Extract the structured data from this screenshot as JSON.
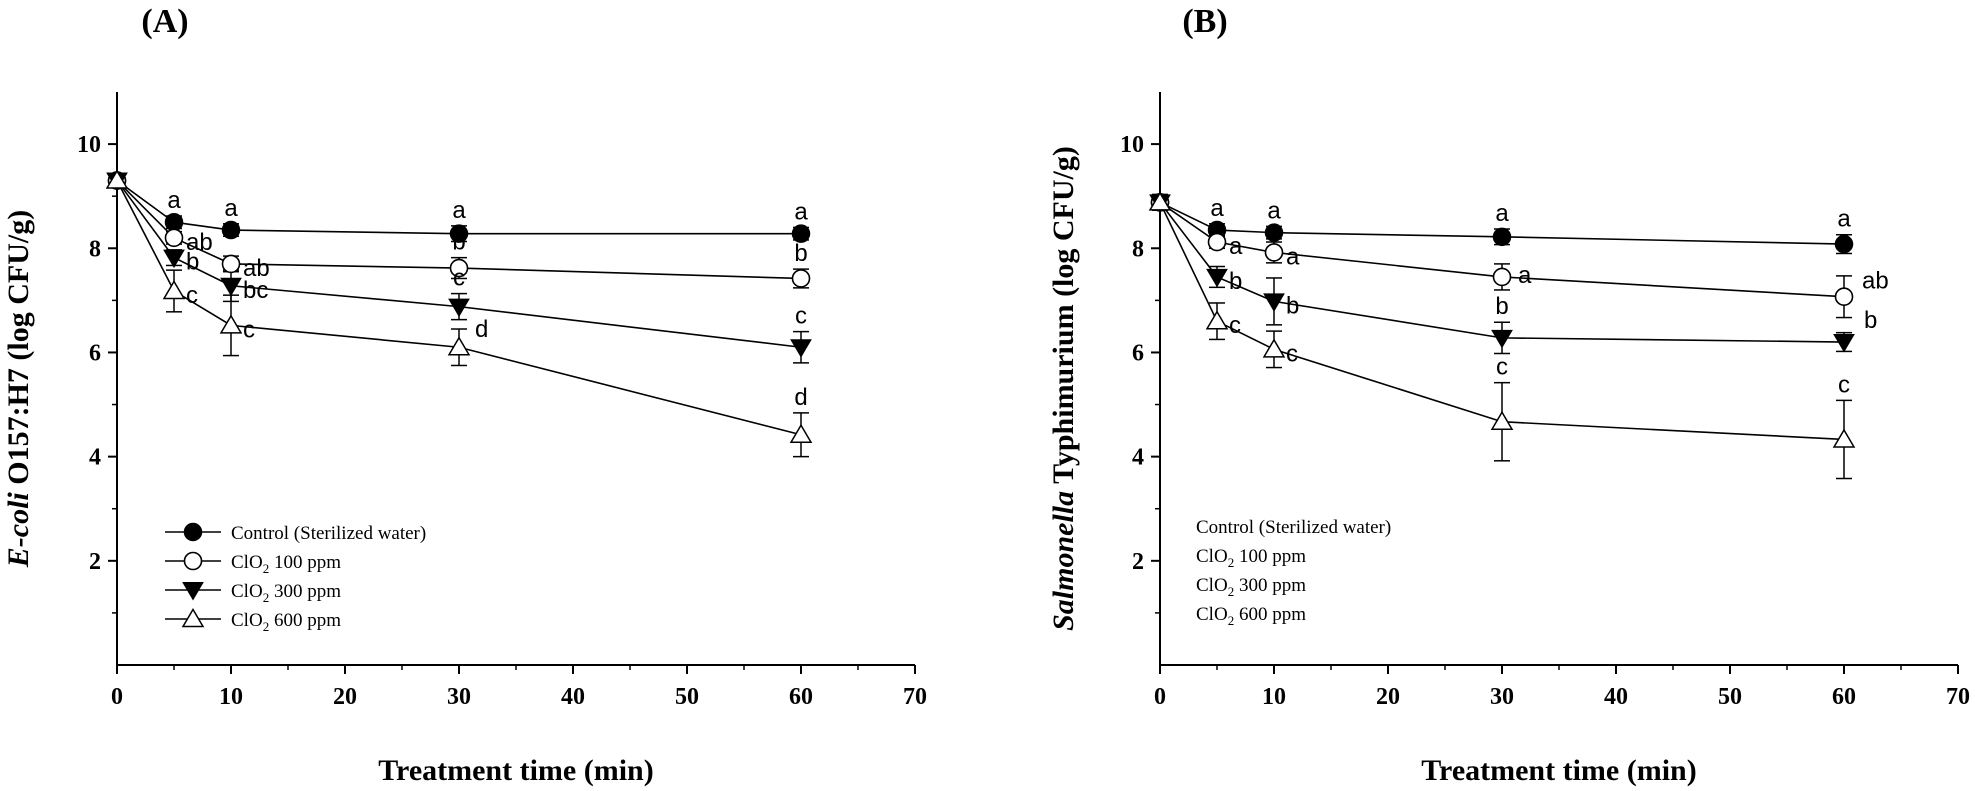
{
  "chart_data": [
    {
      "type": "line",
      "panel_label": "(A)",
      "ylabel_italic": "E-coli",
      "ylabel_rest": " O157:H7 (log CFU/g)",
      "xlabel": "Treatment time (min)",
      "xlim": [
        0,
        70
      ],
      "ylim": [
        0,
        11
      ],
      "xticks": [
        "0",
        "10",
        "20",
        "30",
        "40",
        "50",
        "60",
        "70"
      ],
      "yticks": [
        "2",
        "4",
        "6",
        "8",
        "10"
      ],
      "legend_position": "lower-left",
      "legend_markers": true,
      "x": [
        0,
        5,
        10,
        30,
        60
      ],
      "series": [
        {
          "name": "Control (Sterilized water)",
          "marker": "filled-circle",
          "values": [
            9.3,
            8.5,
            8.35,
            8.28,
            8.28
          ],
          "errors": [
            0.1,
            0.12,
            0.12,
            0.15,
            0.12
          ],
          "letters": [
            "",
            "a",
            "a",
            "a",
            "a"
          ]
        },
        {
          "name": "ClO2 100 ppm",
          "name_main": "ClO",
          "name_sub": "2",
          "name_rest": " 100 ppm",
          "marker": "open-circle",
          "values": [
            9.3,
            8.2,
            7.7,
            7.62,
            7.42
          ],
          "errors": [
            0.1,
            0.12,
            0.15,
            0.2,
            0.18
          ],
          "letters": [
            "",
            "ab",
            "ab",
            "b",
            "b"
          ]
        },
        {
          "name": "ClO2 300 ppm",
          "name_main": "ClO",
          "name_sub": "2",
          "name_rest": " 300 ppm",
          "marker": "filled-triangle-down",
          "values": [
            9.3,
            7.82,
            7.28,
            6.88,
            6.1
          ],
          "errors": [
            0.1,
            0.15,
            0.3,
            0.25,
            0.3
          ],
          "letters": [
            "",
            "b",
            "bc",
            "c",
            "c"
          ]
        },
        {
          "name": "ClO2 600 ppm",
          "name_main": "ClO",
          "name_sub": "2",
          "name_rest": " 600 ppm",
          "marker": "open-triangle-up",
          "values": [
            9.3,
            7.18,
            6.52,
            6.1,
            4.42
          ],
          "errors": [
            0.1,
            0.4,
            0.58,
            0.35,
            0.42
          ],
          "letters": [
            "",
            "c",
            "c",
            "d",
            "d"
          ]
        }
      ]
    },
    {
      "type": "line",
      "panel_label": "(B)",
      "ylabel_italic": "Salmonella",
      "ylabel_rest": " Typhimurium (log CFU/g)",
      "xlabel": "Treatment time (min)",
      "xlim": [
        0,
        70
      ],
      "ylim": [
        0,
        11
      ],
      "xticks": [
        "0",
        "10",
        "20",
        "30",
        "40",
        "50",
        "60",
        "70"
      ],
      "yticks": [
        "2",
        "4",
        "6",
        "8",
        "10"
      ],
      "legend_position": "lower-left",
      "legend_markers": false,
      "x": [
        0,
        5,
        10,
        30,
        60
      ],
      "series": [
        {
          "name": "Control (Sterilized water)",
          "marker": "filled-circle",
          "values": [
            8.88,
            8.35,
            8.3,
            8.22,
            8.08
          ],
          "errors": [
            0.15,
            0.12,
            0.12,
            0.15,
            0.18
          ],
          "letters": [
            "",
            "a",
            "a",
            "a",
            "a"
          ]
        },
        {
          "name": "ClO2 100 ppm",
          "name_main": "ClO",
          "name_sub": "2",
          "name_rest": " 100 ppm",
          "marker": "open-circle",
          "values": [
            8.88,
            8.12,
            7.92,
            7.45,
            7.07
          ],
          "errors": [
            0.15,
            0.12,
            0.2,
            0.25,
            0.4
          ],
          "letters": [
            "",
            "a",
            "a",
            "a",
            "ab"
          ]
        },
        {
          "name": "ClO2 300 ppm",
          "name_main": "ClO",
          "name_sub": "2",
          "name_rest": " 300 ppm",
          "marker": "filled-triangle-down",
          "values": [
            8.88,
            7.45,
            6.98,
            6.28,
            6.2
          ],
          "errors": [
            0.15,
            0.2,
            0.45,
            0.3,
            0.18
          ],
          "letters": [
            "",
            "b",
            "b",
            "b",
            "b"
          ]
        },
        {
          "name": "ClO2 600 ppm",
          "name_main": "ClO",
          "name_sub": "2",
          "name_rest": " 600 ppm",
          "marker": "open-triangle-up",
          "values": [
            8.88,
            6.6,
            6.06,
            4.67,
            4.33
          ],
          "errors": [
            0.15,
            0.35,
            0.35,
            0.75,
            0.75
          ],
          "letters": [
            "",
            "c",
            "c",
            "c",
            "c"
          ]
        }
      ]
    }
  ]
}
